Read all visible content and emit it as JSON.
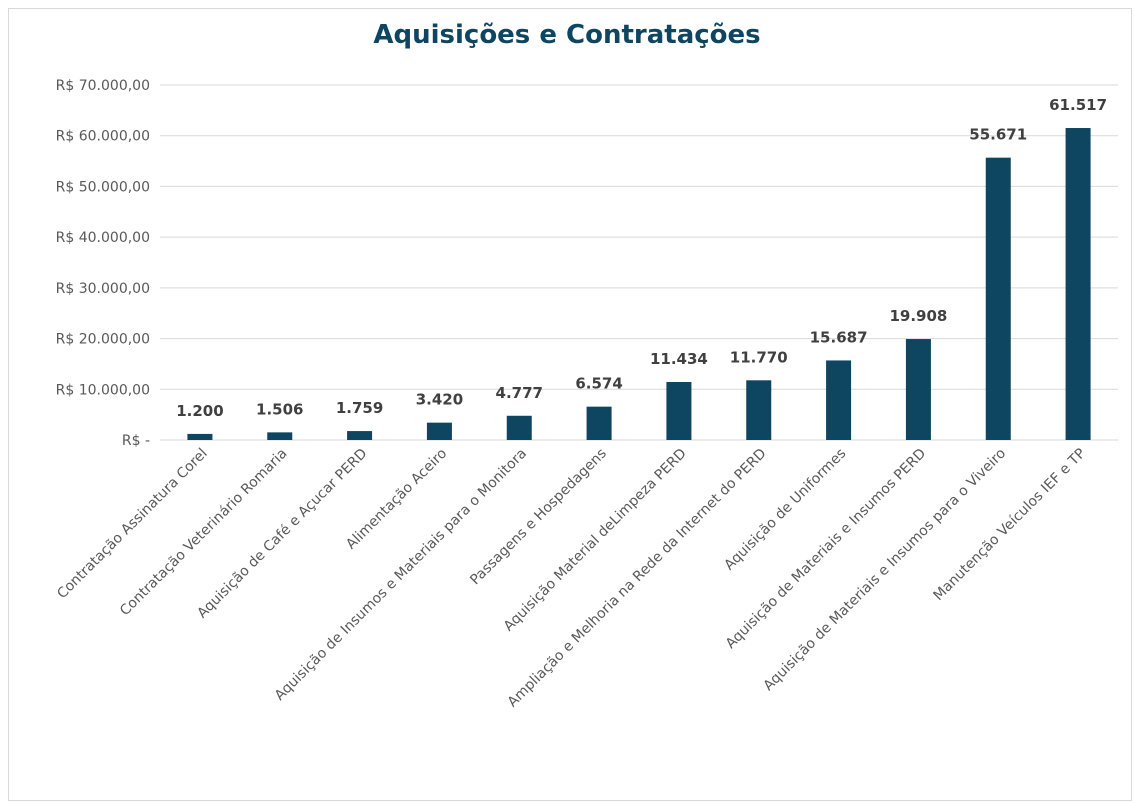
{
  "chart_data": {
    "type": "bar",
    "title": "Aquisições e Contratações",
    "xlabel": "",
    "ylabel": "",
    "ylim": [
      0,
      70000
    ],
    "grid": true,
    "legend": "none",
    "bar_color": "#0e4561",
    "y_ticks": [
      {
        "value": 0,
        "label": "R$ -"
      },
      {
        "value": 10000,
        "label": "R$ 10.000,00"
      },
      {
        "value": 20000,
        "label": "R$ 20.000,00"
      },
      {
        "value": 30000,
        "label": "R$ 30.000,00"
      },
      {
        "value": 40000,
        "label": "R$ 40.000,00"
      },
      {
        "value": 50000,
        "label": "R$ 50.000,00"
      },
      {
        "value": 60000,
        "label": "R$ 60.000,00"
      },
      {
        "value": 70000,
        "label": "R$ 70.000,00"
      }
    ],
    "categories": [
      "Contratação Assinatura Corel",
      "Contratação Veterinário Romaria",
      "Aquisição de Café e Açucar PERD",
      "Alimentação Aceiro",
      "Aquisição de Insumos e Materiais para o Monitora",
      "Passagens e Hospedagens",
      "Aquisição Material deLimpeza PERD",
      "Ampliação e Melhoria na Rede da Internet do PERD",
      "Aquisição de Uniformes",
      "Aquisição de Materiais e Insumos PERD",
      "Aquisição de Materiais e Insumos para o Viveiro",
      "Manutenção Veículos IEF e TP"
    ],
    "values": [
      1200,
      1506,
      1759,
      3420,
      4777,
      6574,
      11434,
      11770,
      15687,
      19908,
      55671,
      61517
    ],
    "data_labels": [
      "1.200",
      "1.506",
      "1.759",
      "3.420",
      "4.777",
      "6.574",
      "11.434",
      "11.770",
      "15.687",
      "19.908",
      "55.671",
      "61.517"
    ]
  }
}
